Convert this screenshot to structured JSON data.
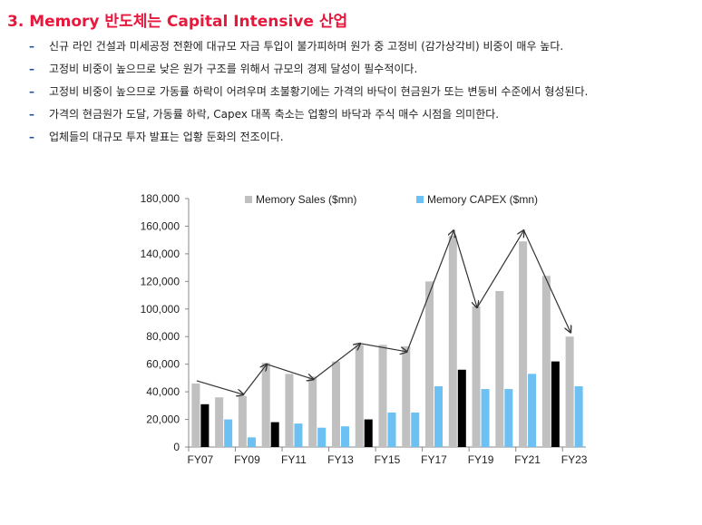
{
  "header": {
    "title": "3. Memory 반도체는 Capital Intensive 산업"
  },
  "bullets": [
    "신규 라인 건설과 미세공정 전환에 대규모 자금 투입이 불가피하며 원가 중 고정비 (감가상각비) 비중이 매우 높다.",
    "고정비 비중이 높으므로 낮은 원가 구조를 위해서 규모의 경제 달성이 필수적이다.",
    "고정비 비중이 높으므로 가동률 하락이 어려우며 초불황기에는 가격의 바닥이 현금원가 또는 변동비 수준에서 형성된다.",
    "가격의 현금원가 도달, 가동률 하락, Capex 대폭 축소는 업황의 바닥과 주식 매수 시점을 의미한다.",
    "업체들의 대규모 투자 발표는 업황 둔화의 전조이다."
  ],
  "bullet_marker": "–",
  "colors": {
    "title": "#e8173c",
    "sales": "#c0c0c0",
    "capex": "#6cc0f2",
    "capex_highlight": "#000000",
    "axis": "#888888",
    "arrow": "#333333"
  },
  "chart_data": {
    "type": "bar",
    "categories": [
      "FY07",
      "FY08",
      "FY09",
      "FY10",
      "FY11",
      "FY12",
      "FY13",
      "FY14",
      "FY15",
      "FY16",
      "FY17",
      "FY18",
      "FY19",
      "FY20",
      "FY21",
      "FY22",
      "FY23"
    ],
    "tick_labels": [
      "FY07",
      "",
      "FY09",
      "",
      "FY11",
      "",
      "FY13",
      "",
      "FY15",
      "",
      "FY17",
      "",
      "FY19",
      "",
      "FY21",
      "",
      "FY23"
    ],
    "series": [
      {
        "name": "Memory Sales ($mn)",
        "values": [
          46000,
          36000,
          37000,
          61000,
          53000,
          51000,
          62000,
          74000,
          74000,
          73000,
          120000,
          153000,
          102000,
          113000,
          149000,
          124000,
          80000
        ]
      },
      {
        "name": "Memory CAPEX ($mn)",
        "values": [
          31000,
          20000,
          7000,
          18000,
          17000,
          14000,
          15000,
          20000,
          25000,
          25000,
          44000,
          56000,
          42000,
          42000,
          53000,
          62000,
          44000
        ]
      }
    ],
    "capex_highlight_years": [
      "FY07",
      "FY10",
      "FY14",
      "FY18",
      "FY22"
    ],
    "trend_arrows": [
      {
        "from": [
          "FY07",
          48000
        ],
        "to": [
          "FY09",
          38000
        ]
      },
      {
        "from": [
          "FY09",
          38000
        ],
        "to": [
          "FY10",
          60000
        ]
      },
      {
        "from": [
          "FY10",
          60000
        ],
        "to": [
          "FY12",
          49000
        ]
      },
      {
        "from": [
          "FY12",
          49000
        ],
        "to": [
          "FY14",
          75000
        ]
      },
      {
        "from": [
          "FY14",
          75000
        ],
        "to": [
          "FY16",
          69000
        ]
      },
      {
        "from": [
          "FY16",
          69000
        ],
        "to": [
          "FY18",
          157000
        ]
      },
      {
        "from": [
          "FY18",
          157000
        ],
        "to": [
          "FY19",
          101000
        ]
      },
      {
        "from": [
          "FY19",
          101000
        ],
        "to": [
          "FY21",
          157000
        ]
      },
      {
        "from": [
          "FY21",
          157000
        ],
        "to": [
          "FY23",
          83000
        ]
      }
    ],
    "y_ticks": [
      "0",
      "20,000",
      "40,000",
      "60,000",
      "80,000",
      "100,000",
      "120,000",
      "140,000",
      "160,000",
      "180,000"
    ],
    "ylim": [
      0,
      180000
    ],
    "y_step": 20000,
    "legend_position": "top",
    "xlabel": "",
    "ylabel": "",
    "grid": false
  }
}
